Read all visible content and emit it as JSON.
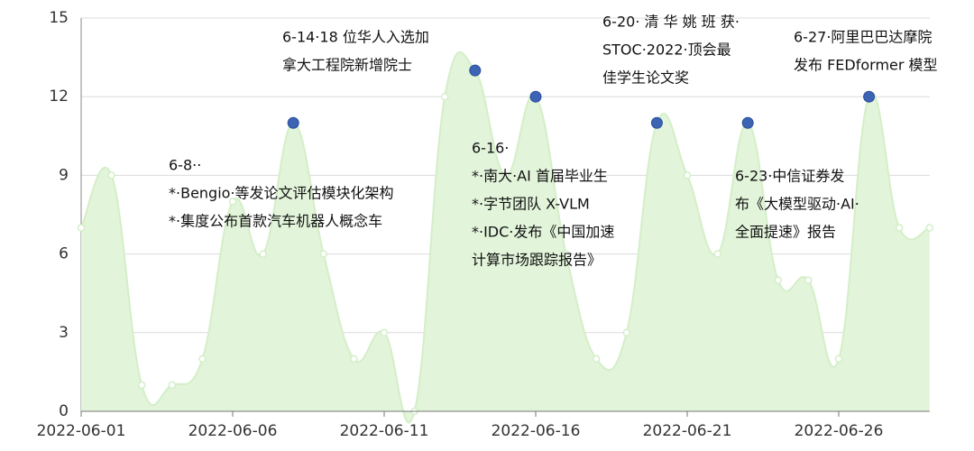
{
  "chart_data": {
    "type": "area",
    "categories": [
      "2022-06-01",
      null,
      null,
      null,
      null,
      "2022-06-06",
      null,
      null,
      null,
      null,
      "2022-06-11",
      null,
      null,
      null,
      null,
      "2022-06-16",
      null,
      null,
      null,
      null,
      "2022-06-21",
      null,
      null,
      null,
      null,
      "2022-06-26",
      null,
      null,
      null
    ],
    "values": [
      7,
      9,
      1,
      1,
      2,
      8,
      6,
      11,
      6,
      2,
      3,
      0,
      12,
      13,
      9,
      12,
      6,
      2,
      3,
      11,
      9,
      6,
      11,
      5,
      5,
      2,
      12,
      7,
      7
    ],
    "color": "#e2f4da",
    "line_color": "#d3efc8",
    "marker_color": "#3c63b4",
    "markers": [
      7,
      13,
      15,
      19,
      22,
      26
    ],
    "ylim": [
      0,
      15
    ],
    "yticks": [
      0,
      3,
      6,
      9,
      12,
      15
    ],
    "grid": true,
    "annotations": [
      {
        "lines": [
          "6-14·18 位华人入选加",
          "拿大工程院新增院士"
        ]
      },
      {
        "lines": [
          "6-8··",
          "*·Bengio·等发论文评估模块化架构",
          "*·集度公布首款汽车机器人概念车"
        ]
      },
      {
        "lines": [
          "6-16·",
          "*·南大·AI 首届毕业生",
          "*·字节团队 X-VLM",
          "*·IDC·发布《中国加速",
          "计算市场跟踪报告》"
        ]
      },
      {
        "lines": [
          "6-20· 清 华 姚 班 获·",
          "STOC·2022·顶会最",
          "佳学生论文奖"
        ]
      },
      {
        "lines": [
          "6-23·中信证券发",
          "布《大模型驱动·AI·",
          "全面提速》报告"
        ]
      },
      {
        "lines": [
          "6-27·阿里巴巴达摩院",
          "发布 FEDformer 模型"
        ]
      }
    ]
  }
}
